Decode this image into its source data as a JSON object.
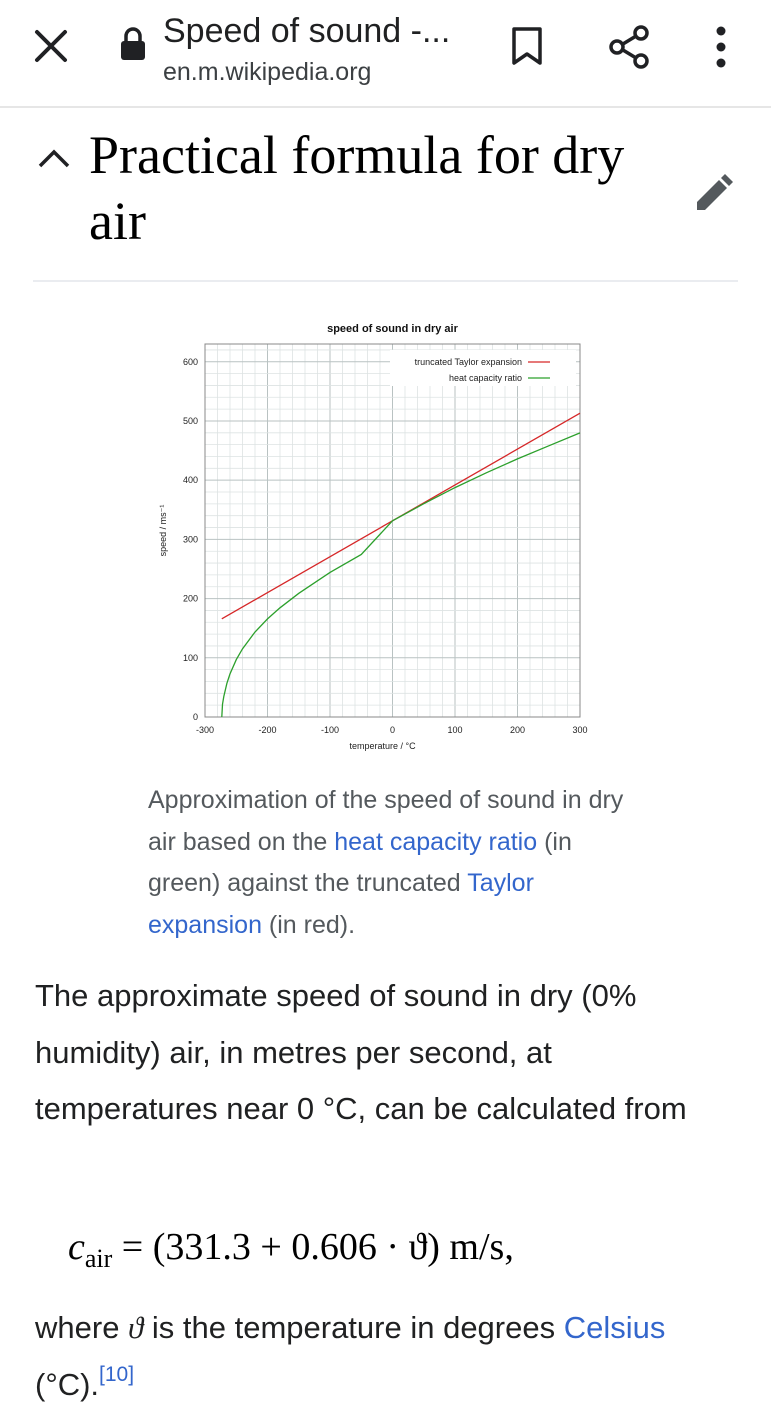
{
  "browser": {
    "title": "Speed of sound -...",
    "url": "en.m.wikipedia.org"
  },
  "section": {
    "heading": "Practical formula for dry air"
  },
  "chart_data": {
    "type": "line",
    "title": "speed of sound in dry air",
    "xlabel": "temperature / °C",
    "ylabel": "speed / ms⁻¹",
    "xlim": [
      -300,
      300
    ],
    "ylim": [
      0,
      630
    ],
    "x_ticks": [
      "-300",
      "-200",
      "-100",
      "0",
      "100",
      "200",
      "300"
    ],
    "y_ticks": [
      "0",
      "100",
      "200",
      "300",
      "400",
      "500",
      "600"
    ],
    "grid": true,
    "legend_position": "top-right",
    "series": [
      {
        "name": "truncated Taylor expansion",
        "color": "#d62728",
        "x": [
          -273.15,
          300
        ],
        "y": [
          165.8,
          513.1
        ]
      },
      {
        "name": "heat capacity ratio",
        "color": "#2ca02c",
        "x": [
          -273.15,
          -272,
          -270,
          -265,
          -260,
          -250,
          -240,
          -220,
          -200,
          -180,
          -150,
          -100,
          -50,
          0,
          50,
          100,
          150,
          200,
          250,
          300
        ],
        "y": [
          0,
          21.5,
          34.7,
          56.9,
          72.8,
          96.9,
          115.2,
          143.6,
          165.7,
          184.5,
          209.0,
          244.2,
          274.5,
          331.3,
          360.3,
          387.5,
          412.5,
          435.9,
          458.0,
          479.8
        ]
      }
    ]
  },
  "caption": {
    "part1": "Approximation of the speed of sound in dry air based on the ",
    "link1": "heat capacity ratio",
    "part2": " (in green) against the truncated ",
    "link2": "Taylor expansion",
    "part3": " (in red)."
  },
  "paragraph1": "The approximate speed of sound in dry (0% humidity) air, in metres per second, at temperatures near 0 °C, can be calculated from",
  "formula": {
    "var": "c",
    "subscript": "air",
    "rhs": " = (331.3 + 0.606 · ϑ)   m/s,"
  },
  "paragraph2": {
    "part1": "where ",
    "symbol": "ϑ",
    "part2": " is the temperature in degrees ",
    "link": "Celsius",
    "part3": " (°C).",
    "ref": "[10]"
  },
  "colors": {
    "link": "#3366cc",
    "text": "#202122",
    "caption": "#54595d"
  }
}
